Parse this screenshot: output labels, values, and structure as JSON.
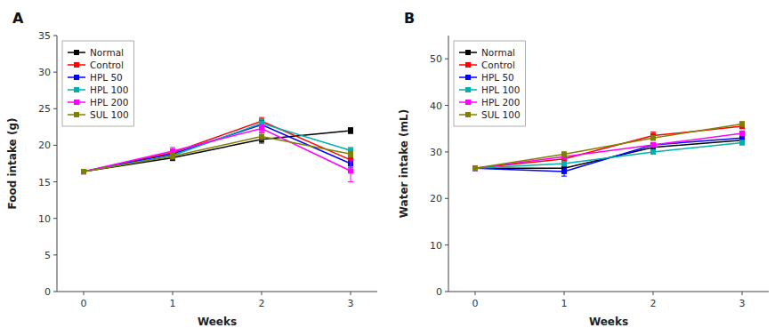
{
  "chart_data": [
    {
      "type": "line",
      "title": "A",
      "x_label": "Weeks",
      "y_label": "Food intake (g)",
      "x": [
        0,
        1,
        2,
        3
      ],
      "xlim": [
        -0.3,
        3.3
      ],
      "xticks": [
        0,
        1,
        2,
        3
      ],
      "ylim": [
        0,
        35
      ],
      "yticks": [
        0,
        5,
        10,
        15,
        20,
        25,
        30,
        35
      ],
      "grid": false,
      "legend": "upper left",
      "series": [
        {
          "name": "Normal",
          "color": "#000000",
          "marker": "square",
          "values": [
            16.4,
            18.3,
            20.8,
            22.0
          ],
          "errors": [
            0.3,
            0.4,
            0.5,
            0.4
          ]
        },
        {
          "name": "Control",
          "color": "#ff0000",
          "marker": "square",
          "values": [
            16.4,
            19.0,
            23.3,
            18.0
          ],
          "errors": [
            0.3,
            0.5,
            0.5,
            0.5
          ]
        },
        {
          "name": "HPL 50",
          "color": "#0000ff",
          "marker": "square",
          "values": [
            16.4,
            18.8,
            22.8,
            17.5
          ],
          "errors": [
            0.3,
            0.4,
            0.5,
            0.5
          ]
        },
        {
          "name": "HPL 100",
          "color": "#00b0b0",
          "marker": "square",
          "values": [
            16.4,
            18.6,
            23.0,
            19.3
          ],
          "errors": [
            0.3,
            0.4,
            0.5,
            0.4
          ]
        },
        {
          "name": "HPL 200",
          "color": "#ff00ff",
          "marker": "square",
          "values": [
            16.4,
            19.2,
            22.3,
            16.5
          ],
          "errors": [
            0.3,
            0.5,
            0.5,
            1.5
          ]
        },
        {
          "name": "SUL 100",
          "color": "#808000",
          "marker": "square",
          "values": [
            16.4,
            18.5,
            21.2,
            18.8
          ],
          "errors": [
            0.3,
            0.4,
            0.5,
            0.4
          ]
        }
      ]
    },
    {
      "type": "line",
      "title": "B",
      "x_label": "Weeks",
      "y_label": "Water intake (mL)",
      "x": [
        0,
        1,
        2,
        3
      ],
      "xlim": [
        -0.3,
        3.3
      ],
      "xticks": [
        0,
        1,
        2,
        3
      ],
      "ylim": [
        0,
        55
      ],
      "yticks": [
        0,
        10,
        20,
        30,
        40,
        50
      ],
      "grid": false,
      "legend": "upper left",
      "series": [
        {
          "name": "Normal",
          "color": "#000000",
          "marker": "square",
          "values": [
            26.5,
            26.5,
            31.0,
            32.5
          ],
          "errors": [
            0.3,
            0.5,
            0.5,
            0.5
          ]
        },
        {
          "name": "Control",
          "color": "#ff0000",
          "marker": "square",
          "values": [
            26.5,
            28.5,
            33.5,
            35.5
          ],
          "errors": [
            0.3,
            1.2,
            0.8,
            0.5
          ]
        },
        {
          "name": "HPL 50",
          "color": "#0000ff",
          "marker": "square",
          "values": [
            26.5,
            25.8,
            31.5,
            33.0
          ],
          "errors": [
            0.3,
            1.0,
            0.5,
            0.5
          ]
        },
        {
          "name": "HPL 100",
          "color": "#00b0b0",
          "marker": "square",
          "values": [
            26.5,
            27.5,
            30.0,
            32.0
          ],
          "errors": [
            0.3,
            0.5,
            0.5,
            0.5
          ]
        },
        {
          "name": "HPL 200",
          "color": "#ff00ff",
          "marker": "square",
          "values": [
            26.5,
            29.0,
            31.5,
            34.0
          ],
          "errors": [
            0.3,
            0.5,
            0.5,
            0.5
          ]
        },
        {
          "name": "SUL 100",
          "color": "#808000",
          "marker": "square",
          "values": [
            26.5,
            29.5,
            33.0,
            36.0
          ],
          "errors": [
            0.3,
            0.5,
            0.5,
            0.5
          ]
        }
      ]
    }
  ]
}
